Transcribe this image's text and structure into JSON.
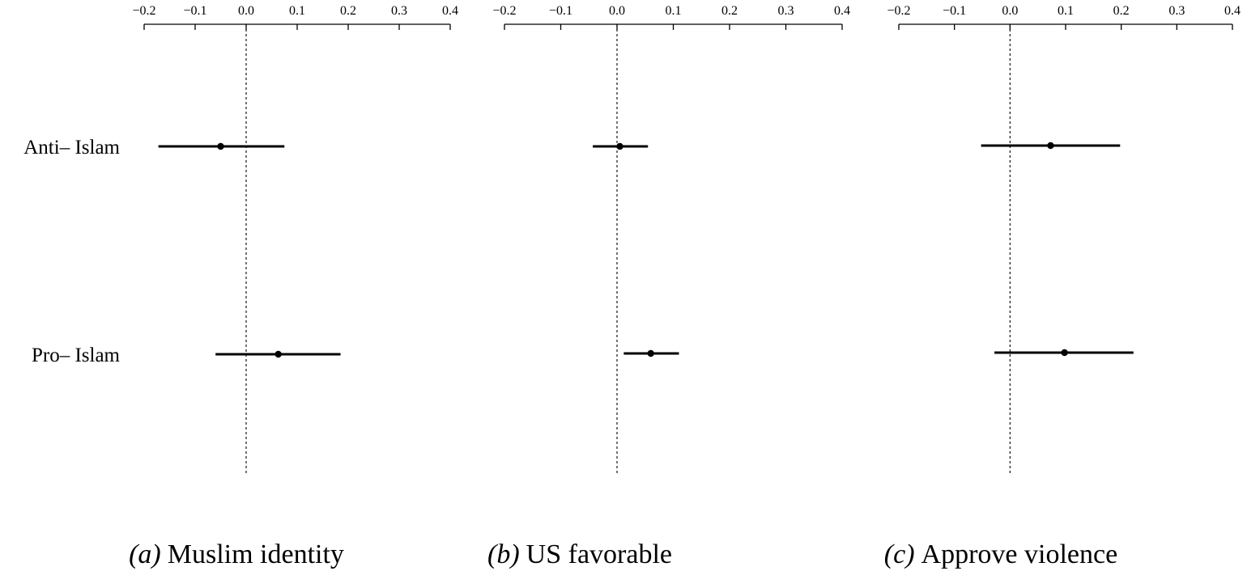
{
  "chart_data": [
    {
      "type": "scatter",
      "caption_letter": "(a)",
      "caption_title": "Muslim identity",
      "xlim": [
        -0.2,
        0.4
      ],
      "xticks": [
        "−0.2",
        "−0.1",
        "0.0",
        "0.1",
        "0.2",
        "0.3",
        "0.4"
      ],
      "xtick_values": [
        -0.2,
        -0.1,
        0.0,
        0.1,
        0.2,
        0.3,
        0.4
      ],
      "reference_line": 0.0,
      "categories": [
        "Anti– Islam",
        "Pro– Islam"
      ],
      "estimates": [
        -0.05,
        0.063
      ],
      "ci_low": [
        -0.172,
        -0.06
      ],
      "ci_high": [
        0.075,
        0.185
      ]
    },
    {
      "type": "scatter",
      "caption_letter": "(b)",
      "caption_title": "US favorable",
      "xlim": [
        -0.2,
        0.4
      ],
      "xticks": [
        "−0.2",
        "−0.1",
        "0.0",
        "0.1",
        "0.2",
        "0.3",
        "0.4"
      ],
      "xtick_values": [
        -0.2,
        -0.1,
        0.0,
        0.1,
        0.2,
        0.3,
        0.4
      ],
      "reference_line": 0.0,
      "categories": [
        "Anti– Islam",
        "Pro– Islam"
      ],
      "estimates": [
        0.005,
        0.06
      ],
      "ci_low": [
        -0.043,
        0.012
      ],
      "ci_high": [
        0.055,
        0.11
      ]
    },
    {
      "type": "scatter",
      "caption_letter": "(c)",
      "caption_title": "Approve violence",
      "xlim": [
        -0.2,
        0.4
      ],
      "xticks": [
        "−0.2",
        "−0.1",
        "0.0",
        "0.1",
        "0.2",
        "0.3",
        "0.4"
      ],
      "xtick_values": [
        -0.2,
        -0.1,
        0.0,
        0.1,
        0.2,
        0.3,
        0.4
      ],
      "reference_line": 0.0,
      "categories": [
        "Anti– Islam",
        "Pro– Islam"
      ],
      "estimates": [
        0.073,
        0.098
      ],
      "ci_low": [
        -0.052,
        -0.028
      ],
      "ci_high": [
        0.198,
        0.222
      ]
    }
  ],
  "colors": {
    "ink": "#000000",
    "background": "#ffffff"
  }
}
